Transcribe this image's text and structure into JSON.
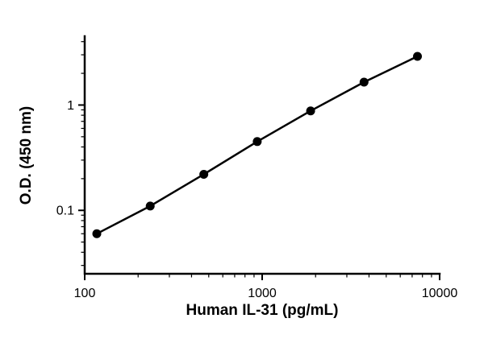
{
  "chart_data": {
    "type": "scatter",
    "title": "",
    "xlabel": "Human IL-31 (pg/mL)",
    "ylabel": "O.D. (450 nm)",
    "x_scale": "log",
    "y_scale": "log",
    "xlim": [
      100,
      10000
    ],
    "ylim": [
      0.025,
      4.5
    ],
    "x": [
      117,
      234,
      469,
      938,
      1875,
      3750,
      7500
    ],
    "y": [
      0.06,
      0.11,
      0.22,
      0.45,
      0.88,
      1.65,
      2.9
    ],
    "marker_color": "#000000",
    "line_color": "#000000",
    "grid": false,
    "legend": false,
    "x_ticks": {
      "major": [
        100,
        1000,
        10000
      ],
      "labels": [
        "100",
        "1000",
        "10000"
      ],
      "minor": [
        200,
        300,
        400,
        500,
        600,
        700,
        800,
        900,
        2000,
        3000,
        4000,
        5000,
        6000,
        7000,
        8000,
        9000
      ]
    },
    "y_ticks": {
      "major": [
        0.1,
        1
      ],
      "labels": [
        "0.1",
        "1"
      ],
      "minor": [
        0.03,
        0.04,
        0.05,
        0.06,
        0.07,
        0.08,
        0.09,
        0.2,
        0.3,
        0.4,
        0.5,
        0.6,
        0.7,
        0.8,
        0.9,
        2,
        3,
        4
      ]
    }
  }
}
